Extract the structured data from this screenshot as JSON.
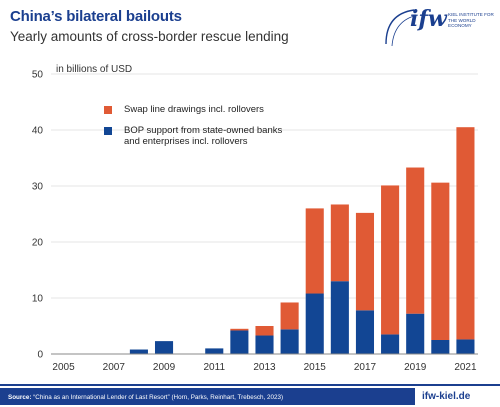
{
  "header": {
    "title": "China’s bilateral bailouts",
    "subtitle": "Yearly amounts of cross-border rescue lending"
  },
  "logo": {
    "mark": "ifw",
    "name_line1": "KIEL INSTITUTE FOR",
    "name_line2": "THE WORLD ECONOMY"
  },
  "footer": {
    "source_label": "Source:",
    "source_text": "“China as an International Lender of Last Resort” (Horn, Parks, Reinhart, Trebesch, 2023)",
    "site": "ifw-kiel.de"
  },
  "colors": {
    "swap": "#e05a35",
    "bop": "#124694",
    "brand": "#1b3f8f",
    "grid": "#dcdcdc"
  },
  "chart_data": {
    "type": "bar",
    "stacked": true,
    "title": "China’s bilateral bailouts",
    "subtitle": "Yearly amounts of cross-border rescue lending",
    "ylabel": "in billions of USD",
    "ylim": [
      0,
      50
    ],
    "yticks": [
      0,
      10,
      20,
      30,
      40,
      50
    ],
    "grid": true,
    "legend_position": "top-left",
    "categories": [
      "2005",
      "2006",
      "2007",
      "2008",
      "2009",
      "2010",
      "2011",
      "2012",
      "2013",
      "2014",
      "2015",
      "2016",
      "2017",
      "2018",
      "2019",
      "2020",
      "2021"
    ],
    "xtick_labels": [
      "2005",
      "2007",
      "2009",
      "2011",
      "2013",
      "2015",
      "2017",
      "2019",
      "2021"
    ],
    "series": [
      {
        "name": "BOP support from state-owned banks and enterprises incl. rollovers",
        "color": "#124694",
        "values": [
          0,
          0,
          0,
          0.8,
          2.3,
          0,
          1.0,
          4.2,
          3.3,
          4.4,
          10.8,
          13.0,
          7.8,
          3.5,
          7.2,
          2.5,
          2.6
        ]
      },
      {
        "name": "Swap line drawings incl. rollovers",
        "color": "#e05a35",
        "values": [
          0,
          0,
          0,
          0,
          0,
          0,
          0,
          0.3,
          1.7,
          4.8,
          15.2,
          13.7,
          17.4,
          26.6,
          26.1,
          28.1,
          37.9
        ]
      }
    ]
  }
}
